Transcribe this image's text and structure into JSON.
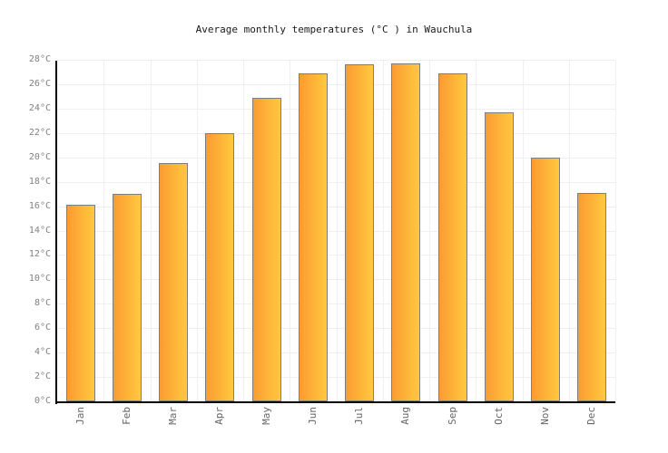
{
  "chart_data": {
    "type": "bar",
    "title": "Average monthly temperatures (°C ) in Wauchula",
    "categories": [
      "Jan",
      "Feb",
      "Mar",
      "Apr",
      "May",
      "Jun",
      "Jul",
      "Aug",
      "Sep",
      "Oct",
      "Nov",
      "Dec"
    ],
    "values": [
      16.1,
      17,
      19.5,
      22,
      24.9,
      26.9,
      27.6,
      27.7,
      26.9,
      23.7,
      20,
      17.1
    ],
    "xlabel": "",
    "ylabel": "°C",
    "ylim": [
      0,
      28
    ],
    "ytick_step": 2,
    "ytick_suffix": "°C",
    "grid": true,
    "legend": "none",
    "colors": {
      "bar_gradient_left": "#fb9b32",
      "bar_gradient_right": "#ffc93e",
      "bar_border": "#7d7d7d",
      "axis": "#000000",
      "gridline": "#efefef",
      "y_label_text": "#808080",
      "x_label_text": "#666666",
      "title_text": "#1a1a1a",
      "background": "#ffffff"
    }
  }
}
